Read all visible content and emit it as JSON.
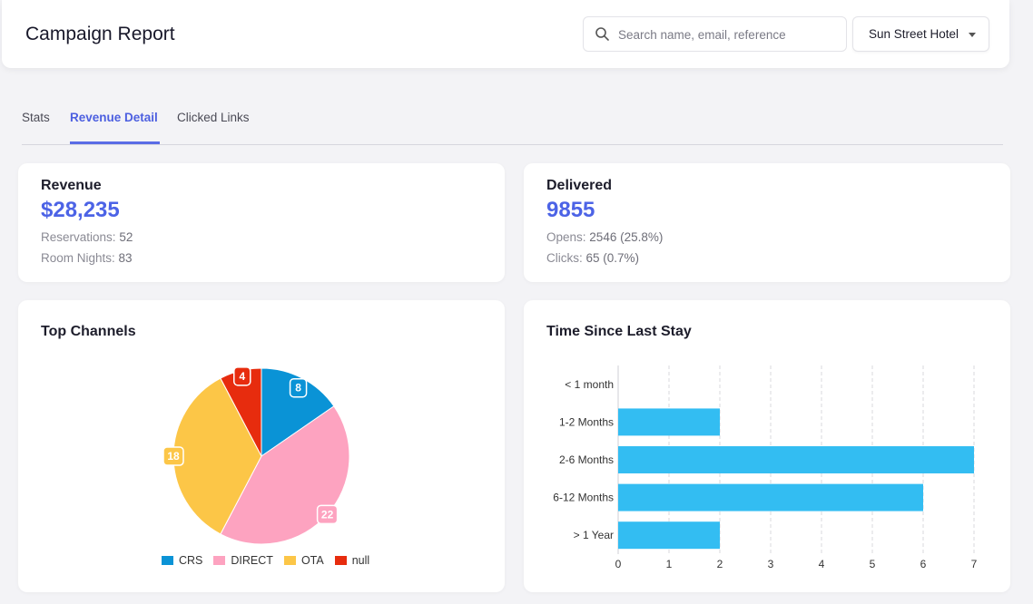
{
  "header": {
    "title": "Campaign Report",
    "search_placeholder": "Search name, email, reference",
    "hotel_selected": "Sun Street Hotel"
  },
  "tabs": [
    {
      "label": "Stats"
    },
    {
      "label": "Revenue Detail",
      "active": true
    },
    {
      "label": "Clicked Links"
    }
  ],
  "revenue_card": {
    "title": "Revenue",
    "value": "$28,235",
    "reservations_label": "Reservations:",
    "reservations_value": "52",
    "room_nights_label": "Room Nights:",
    "room_nights_value": "83"
  },
  "delivered_card": {
    "title": "Delivered",
    "value": "9855",
    "opens_label": "Opens:",
    "opens_value": "2546 (25.8%)",
    "clicks_label": "Clicks:",
    "clicks_value": "65 (0.7%)"
  },
  "colors": {
    "accent": "#4c63e6",
    "crs": "#0a93d6",
    "direct": "#fda3c0",
    "ota": "#fcc647",
    "null": "#e72c0e",
    "bar": "#33bdf2"
  },
  "chart_data": [
    {
      "type": "pie",
      "title": "Top Channels",
      "labels": [
        "CRS",
        "DIRECT",
        "OTA",
        "null"
      ],
      "values": [
        8,
        22,
        18,
        4
      ],
      "legend_position": "bottom"
    },
    {
      "type": "bar",
      "orientation": "horizontal",
      "title": "Time Since Last Stay",
      "categories": [
        "< 1 month",
        "1-2 Months",
        "2-6 Months",
        "6-12 Months",
        "> 1 Year"
      ],
      "values": [
        0,
        2,
        7,
        6,
        2
      ],
      "xlim": [
        0,
        7
      ],
      "x_ticks": [
        "0",
        "1",
        "2",
        "3",
        "4",
        "5",
        "6",
        "7"
      ],
      "grid": "vertical dashed"
    }
  ]
}
